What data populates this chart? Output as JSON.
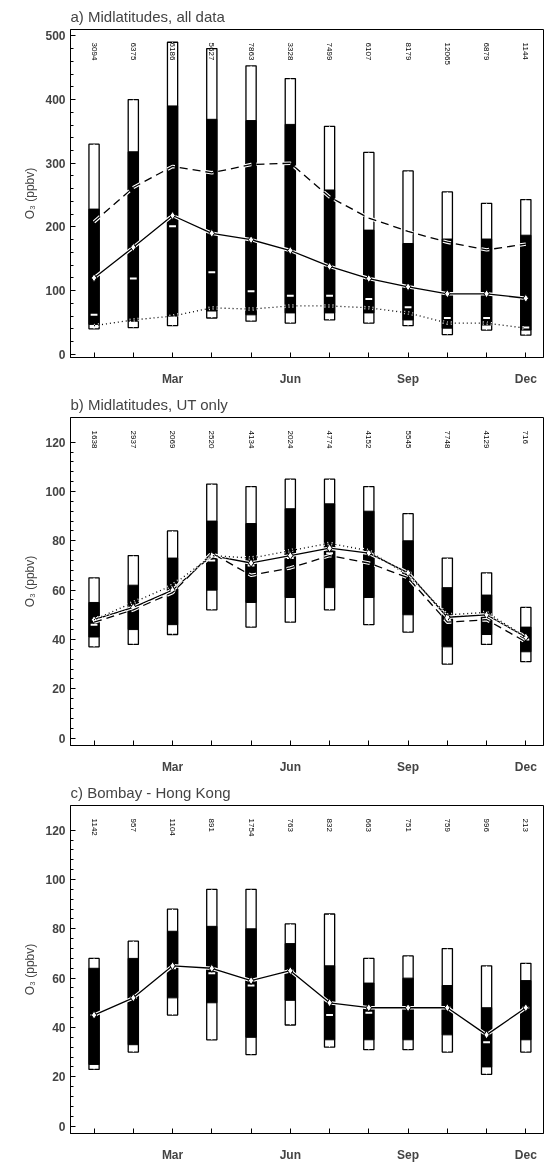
{
  "chart_data": [
    {
      "type": "box",
      "title": "a) Midlatitudes, all data",
      "ylabel": "O₃ (ppbv)",
      "categories": [
        null,
        null,
        "Mar",
        null,
        null,
        "Jun",
        null,
        null,
        "Sep",
        null,
        null,
        "Dec"
      ],
      "ylim": [
        -5,
        510
      ],
      "yticks": [
        0,
        100,
        200,
        300,
        400,
        500
      ],
      "boxes": [
        {
          "low": 40,
          "q1": 47,
          "median": 62,
          "q3": 228,
          "high": 330
        },
        {
          "low": 42,
          "q1": 52,
          "median": 119,
          "q3": 318,
          "high": 400
        },
        {
          "low": 45,
          "q1": 60,
          "median": 201,
          "q3": 390,
          "high": 490
        },
        {
          "low": 57,
          "q1": 68,
          "median": 129,
          "q3": 369,
          "high": 480
        },
        {
          "low": 52,
          "q1": 62,
          "median": 99,
          "q3": 367,
          "high": 453
        },
        {
          "low": 49,
          "q1": 65,
          "median": 92,
          "q3": 361,
          "high": 433
        },
        {
          "low": 54,
          "q1": 65,
          "median": 92,
          "q3": 258,
          "high": 358
        },
        {
          "low": 49,
          "q1": 65,
          "median": 87,
          "q3": 195,
          "high": 317
        },
        {
          "low": 45,
          "q1": 54,
          "median": 74,
          "q3": 174,
          "high": 288
        },
        {
          "low": 31,
          "q1": 41,
          "median": 57,
          "q3": 181,
          "high": 255
        },
        {
          "low": 38,
          "q1": 46,
          "median": 57,
          "q3": 181,
          "high": 237
        },
        {
          "low": 30,
          "q1": 38,
          "median": 42,
          "q3": 187,
          "high": 243
        }
      ],
      "series": [
        {
          "type": "line",
          "color": "#000000",
          "line_style": "solid",
          "marker": "diamond",
          "values": [
            120,
            168,
            218,
            190,
            180,
            163,
            138,
            119,
            106,
            95,
            95,
            88
          ]
        },
        {
          "type": "line",
          "color": "#000000",
          "line_style": "dashed",
          "marker": "none",
          "values": [
            208,
            262,
            295,
            285,
            298,
            300,
            247,
            214,
            193,
            176,
            164,
            173
          ]
        },
        {
          "type": "line",
          "color": "#000000",
          "line_style": "dotted",
          "marker": "none",
          "values": [
            45,
            54,
            60,
            73,
            71,
            76,
            76,
            73,
            65,
            49,
            49,
            41
          ]
        }
      ],
      "annotations": [
        "3094",
        "6375",
        "6186",
        "5627",
        "7863",
        "3328",
        "7499",
        "6107",
        "8179",
        "12065",
        "6879",
        "1144"
      ]
    },
    {
      "type": "box",
      "title": "b) Midlatitudes, UT only",
      "ylabel": "O₃ (ppbv)",
      "categories": [
        null,
        null,
        "Mar",
        null,
        null,
        "Jun",
        null,
        null,
        "Sep",
        null,
        null,
        "Dec"
      ],
      "ylim": [
        -3,
        130
      ],
      "yticks": [
        0,
        20,
        40,
        60,
        80,
        100,
        120
      ],
      "boxes": [
        {
          "low": 37,
          "q1": 41,
          "median": 46,
          "q3": 55,
          "high": 65
        },
        {
          "low": 38,
          "q1": 44,
          "median": 53,
          "q3": 62,
          "high": 74
        },
        {
          "low": 42,
          "q1": 46,
          "median": 60,
          "q3": 73,
          "high": 84
        },
        {
          "low": 52,
          "q1": 60,
          "median": 72,
          "q3": 88,
          "high": 103
        },
        {
          "low": 45,
          "q1": 55,
          "median": 70,
          "q3": 87,
          "high": 102
        },
        {
          "low": 47,
          "q1": 57,
          "median": 73,
          "q3": 93,
          "high": 105
        },
        {
          "low": 52,
          "q1": 61,
          "median": 75,
          "q3": 95,
          "high": 105
        },
        {
          "low": 46,
          "q1": 57,
          "median": 75,
          "q3": 92,
          "high": 102
        },
        {
          "low": 43,
          "q1": 50,
          "median": 67,
          "q3": 80,
          "high": 91
        },
        {
          "low": 30,
          "q1": 37,
          "median": 48,
          "q3": 61,
          "high": 73
        },
        {
          "low": 38,
          "q1": 42,
          "median": 50,
          "q3": 58,
          "high": 67
        },
        {
          "low": 31,
          "q1": 35,
          "median": 40,
          "q3": 45,
          "high": 53
        }
      ],
      "series": [
        {
          "type": "line",
          "color": "#000000",
          "line_style": "solid",
          "marker": "diamond",
          "values": [
            48,
            53,
            60,
            74,
            71,
            74,
            77,
            75,
            67,
            49,
            50,
            41
          ]
        },
        {
          "type": "line",
          "color": "#000000",
          "line_style": "dashed",
          "marker": "none",
          "values": [
            47,
            52,
            59,
            75,
            66,
            69,
            74,
            71,
            65,
            47,
            48,
            39
          ]
        },
        {
          "type": "line",
          "color": "#000000",
          "line_style": "dotted",
          "marker": "none",
          "values": [
            48,
            55,
            62,
            74,
            73,
            76,
            79,
            76,
            66,
            50,
            51,
            41
          ]
        }
      ],
      "annotations": [
        "1638",
        "2937",
        "2069",
        "2520",
        "4134",
        "2024",
        "4774",
        "4152",
        "5545",
        "7748",
        "4129",
        "716"
      ]
    },
    {
      "type": "box",
      "title": "c) Bombay - Hong Kong",
      "ylabel": "O₃ (ppbv)",
      "categories": [
        null,
        null,
        "Mar",
        null,
        null,
        "Jun",
        null,
        null,
        "Sep",
        null,
        null,
        "Dec"
      ],
      "ylim": [
        -3,
        130
      ],
      "yticks": [
        0,
        20,
        40,
        60,
        80,
        100,
        120
      ],
      "boxes": [
        {
          "low": 23,
          "q1": 25,
          "median": 45,
          "q3": 64,
          "high": 68
        },
        {
          "low": 30,
          "q1": 33,
          "median": 52,
          "q3": 68,
          "high": 75
        },
        {
          "low": 45,
          "q1": 52,
          "median": 64,
          "q3": 79,
          "high": 88
        },
        {
          "low": 35,
          "q1": 50,
          "median": 62,
          "q3": 81,
          "high": 96
        },
        {
          "low": 29,
          "q1": 36,
          "median": 57,
          "q3": 80,
          "high": 96
        },
        {
          "low": 41,
          "q1": 51,
          "median": 63,
          "q3": 74,
          "high": 82
        },
        {
          "low": 32,
          "q1": 35,
          "median": 45,
          "q3": 65,
          "high": 86
        },
        {
          "low": 31,
          "q1": 35,
          "median": 46,
          "q3": 58,
          "high": 68
        },
        {
          "low": 31,
          "q1": 35,
          "median": 48,
          "q3": 60,
          "high": 69
        },
        {
          "low": 30,
          "q1": 37,
          "median": 48,
          "q3": 57,
          "high": 72
        },
        {
          "low": 21,
          "q1": 24,
          "median": 34,
          "q3": 48,
          "high": 65
        },
        {
          "low": 30,
          "q1": 35,
          "median": 48,
          "q3": 59,
          "high": 66
        }
      ],
      "series": [
        {
          "type": "line",
          "color": "#000000",
          "line_style": "solid",
          "marker": "diamond",
          "values": [
            45,
            52,
            65,
            64,
            59,
            63,
            50,
            48,
            48,
            48,
            37,
            48
          ]
        }
      ],
      "annotations": [
        "1142",
        "957",
        "1104",
        "891",
        "1754",
        "763",
        "832",
        "663",
        "751",
        "759",
        "996",
        "213"
      ]
    }
  ]
}
